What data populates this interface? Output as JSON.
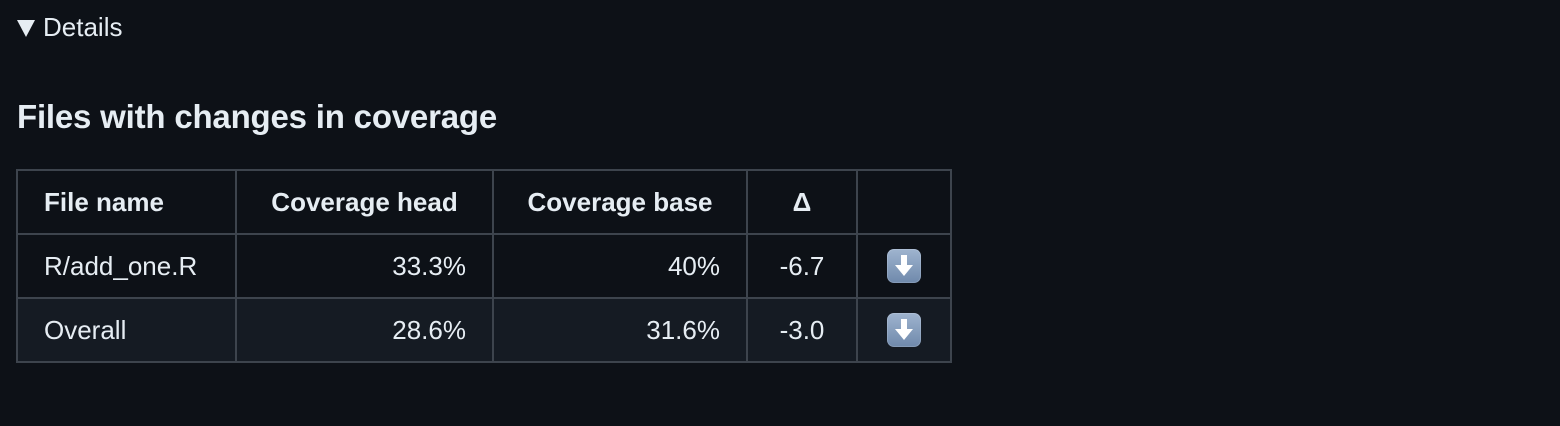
{
  "details": {
    "summary_label": "Details",
    "expanded": true
  },
  "section": {
    "title": "Files with changes in coverage"
  },
  "table": {
    "headers": {
      "file_name": "File name",
      "coverage_head": "Coverage head",
      "coverage_base": "Coverage base",
      "delta": "Δ",
      "indicator": ""
    },
    "rows": [
      {
        "file_name": "R/add_one.R",
        "coverage_head": "33.3%",
        "coverage_base": "40%",
        "delta": "-6.7",
        "indicator_icon": "down-arrow-icon"
      },
      {
        "file_name": "Overall",
        "coverage_head": "28.6%",
        "coverage_base": "31.6%",
        "delta": "-3.0",
        "indicator_icon": "down-arrow-icon"
      }
    ]
  },
  "colors": {
    "background": "#0d1117",
    "text": "#e6edf3",
    "border": "#3d444d",
    "row_alt_background": "#151b23",
    "indicator_icon": "#7f9bbd"
  }
}
